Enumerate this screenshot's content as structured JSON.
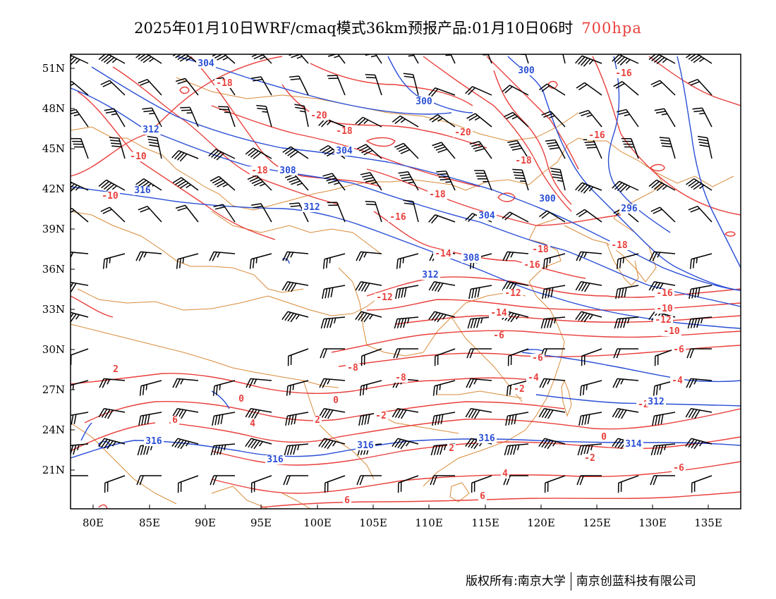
{
  "title": {
    "main": "2025年01月10日WRF/cmaq模式36km预报产品:01月10日06时",
    "level": "700hpa",
    "level_color": "#e8403c"
  },
  "axes": {
    "lat_labels": [
      "51N",
      "48N",
      "45N",
      "42N",
      "39N",
      "36N",
      "33N",
      "30N",
      "27N",
      "24N",
      "21N"
    ],
    "lon_labels": [
      "80E",
      "85E",
      "90E",
      "95E",
      "100E",
      "105E",
      "110E",
      "115E",
      "120E",
      "125E",
      "130E",
      "135E"
    ]
  },
  "colors": {
    "temperature": "#e8403c",
    "geopotential": "#2a4fd6",
    "boundary": "#d98b3a",
    "barb": "#000000"
  },
  "temperature_labels": [
    "-18",
    "-20",
    "-18",
    "-20",
    "-16",
    "-18",
    "-16",
    "-10",
    "-10",
    "-18",
    "-18",
    "-16",
    "-18",
    "-16",
    "-14",
    "-18",
    "-16",
    "-12",
    "-12",
    "-10",
    "-14",
    "-12",
    "-10",
    "-8",
    "-6",
    "-8",
    "-6",
    "-6",
    "-4",
    "-2",
    "0",
    "0",
    "2",
    "4",
    "6",
    "-2",
    "-2",
    "2",
    "4",
    "6",
    "6",
    "2",
    "0",
    "-2",
    "-6",
    "-4"
  ],
  "height_labels": [
    "304",
    "300",
    "300",
    "312",
    "304",
    "308",
    "316",
    "312",
    "300",
    "304",
    "296",
    "308",
    "312",
    "316",
    "316",
    "316",
    "316",
    "314",
    "312"
  ],
  "credit": {
    "left": "版权所有:南京大学",
    "right": "南京创蓝科技有限公司"
  }
}
